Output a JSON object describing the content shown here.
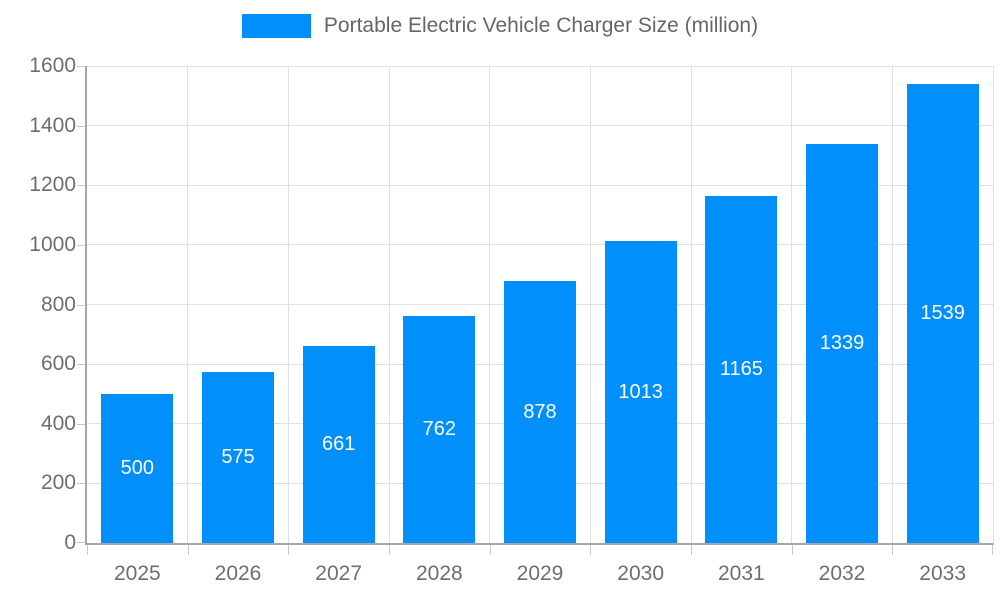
{
  "chart_data": {
    "type": "bar",
    "title": "Portable Electric Vehicle Charger Size (million)",
    "categories": [
      "2025",
      "2026",
      "2027",
      "2028",
      "2029",
      "2030",
      "2031",
      "2032",
      "2033"
    ],
    "values": [
      500,
      575,
      661,
      762,
      878,
      1013,
      1165,
      1339,
      1539
    ],
    "value_labels": [
      "500",
      "575",
      "661",
      "762",
      "878",
      "1013",
      "1165",
      "1339",
      "1539"
    ],
    "xlabel": "",
    "ylabel": "",
    "ylim": [
      0,
      1600
    ],
    "yticks": [
      0,
      200,
      400,
      600,
      800,
      1000,
      1200,
      1400,
      1600
    ],
    "grid": true,
    "legend_position": "top",
    "colors": {
      "bar": "#008FFB",
      "grid": "#e0e0e0",
      "axis": "#a6a6a6",
      "tick": "#c8c8c8",
      "axis_label": "#6e6e6e",
      "legend_label": "#666666",
      "value_label": "#ffffff",
      "background": "#ffffff"
    }
  }
}
